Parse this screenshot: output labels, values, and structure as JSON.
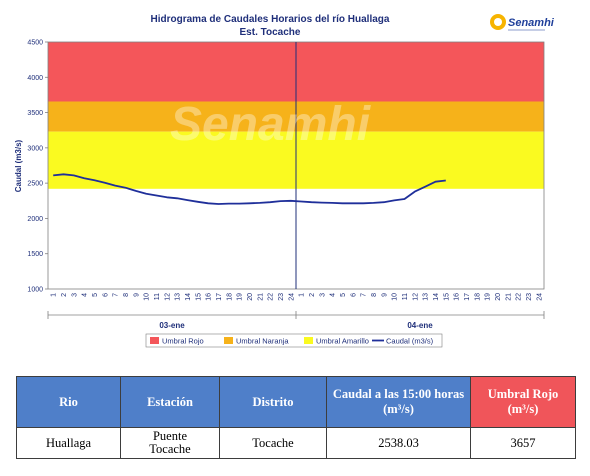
{
  "chart_data": {
    "type": "line",
    "title": "Hidrograma de Caudales Horarios del río Huallaga",
    "subtitle": "Est. Tocache",
    "ylabel": "Caudal  (m3/s)",
    "ylim": [
      1000,
      4500
    ],
    "yticks": [
      "1000",
      "1500",
      "2000",
      "2500",
      "3000",
      "3500",
      "4000",
      "4500"
    ],
    "hour_ticks": [
      "1",
      "2",
      "3",
      "4",
      "5",
      "6",
      "7",
      "8",
      "9",
      "10",
      "11",
      "12",
      "13",
      "14",
      "15",
      "16",
      "17",
      "18",
      "19",
      "20",
      "21",
      "22",
      "23",
      "24"
    ],
    "days": [
      "03-ene",
      "04-ene"
    ],
    "thresholds": [
      {
        "name": "Umbral Rojo",
        "from": 3657,
        "to": 4500,
        "color": "#f4565a"
      },
      {
        "name": "Umbral Naranja",
        "from": 3230,
        "to": 3657,
        "color": "#f6b21a"
      },
      {
        "name": "Umbral Amarillo",
        "from": 2420,
        "to": 3230,
        "color": "#fafa20"
      }
    ],
    "series": [
      {
        "name": "Caudal (m3/s)",
        "color": "#1f2f9a",
        "x": [
          1,
          2,
          3,
          4,
          5,
          6,
          7,
          8,
          9,
          10,
          11,
          12,
          13,
          14,
          15,
          16,
          17,
          18,
          19,
          20,
          21,
          22,
          23,
          24,
          25,
          26,
          27,
          28,
          29,
          30,
          31,
          32,
          33,
          34,
          35,
          36,
          37,
          38,
          39
        ],
        "values": [
          2610,
          2625,
          2610,
          2570,
          2540,
          2505,
          2465,
          2435,
          2390,
          2350,
          2325,
          2300,
          2285,
          2260,
          2235,
          2215,
          2205,
          2210,
          2210,
          2215,
          2220,
          2230,
          2245,
          2250,
          2240,
          2230,
          2225,
          2220,
          2215,
          2215,
          2215,
          2220,
          2230,
          2255,
          2275,
          2380,
          2450,
          2520,
          2538
        ]
      }
    ]
  },
  "logo": {
    "name": "Senamhi"
  },
  "table": {
    "headers": {
      "rio": "Rio",
      "estacion": "Estación",
      "distrito": "Distrito",
      "caudal": "Caudal a las 15:00 horas",
      "caudal_unit": "(m³/s)",
      "umbral": "Umbral Rojo",
      "umbral_unit": "(m³/s)"
    },
    "row": {
      "rio": "Huallaga",
      "estacion_1": "Puente",
      "estacion_2": "Tocache",
      "distrito": "Tocache",
      "caudal": "2538.03",
      "umbral": "3657"
    }
  }
}
